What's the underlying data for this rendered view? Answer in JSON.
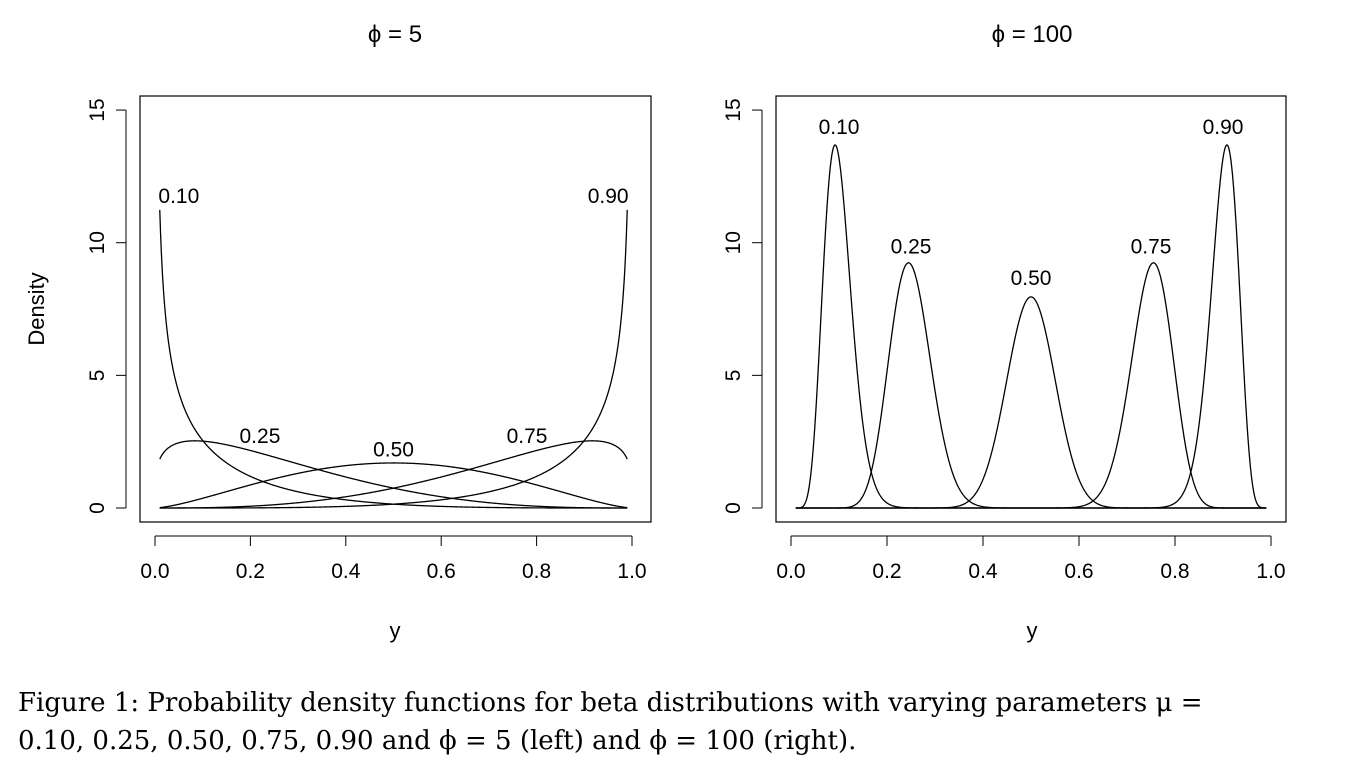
{
  "chart_data": [
    {
      "type": "line",
      "title": "ϕ = 5",
      "phi": 5,
      "xlabel": "y",
      "ylabel": "Density",
      "xlim": [
        0.0,
        1.0
      ],
      "ylim": [
        0,
        15
      ],
      "x_ticks": [
        "0.0",
        "0.2",
        "0.4",
        "0.6",
        "0.8",
        "1.0"
      ],
      "y_ticks": [
        "0",
        "5",
        "10",
        "15"
      ],
      "x_range_plotted": [
        0.01,
        0.99
      ],
      "grid": false,
      "legend": "none",
      "series": [
        {
          "name": "0.10",
          "mu": 0.1,
          "label_at": [
            0.05,
            11.8
          ]
        },
        {
          "name": "0.25",
          "mu": 0.25,
          "label_at": [
            0.22,
            2.75
          ]
        },
        {
          "name": "0.50",
          "mu": 0.5,
          "label_at": [
            0.5,
            2.25
          ]
        },
        {
          "name": "0.75",
          "mu": 0.75,
          "label_at": [
            0.78,
            2.75
          ]
        },
        {
          "name": "0.90",
          "mu": 0.9,
          "label_at": [
            0.95,
            11.8
          ]
        }
      ]
    },
    {
      "type": "line",
      "title": "ϕ = 100",
      "phi": 100,
      "xlabel": "y",
      "ylabel": "",
      "xlim": [
        0.0,
        1.0
      ],
      "ylim": [
        0,
        15
      ],
      "x_ticks": [
        "0.0",
        "0.2",
        "0.4",
        "0.6",
        "0.8",
        "1.0"
      ],
      "y_ticks": [
        "0",
        "5",
        "10",
        "15"
      ],
      "x_range_plotted": [
        0.01,
        0.99
      ],
      "grid": false,
      "legend": "none",
      "series": [
        {
          "name": "0.10",
          "mu": 0.1,
          "label_at": [
            0.1,
            14.4
          ]
        },
        {
          "name": "0.25",
          "mu": 0.25,
          "label_at": [
            0.25,
            9.9
          ]
        },
        {
          "name": "0.50",
          "mu": 0.5,
          "label_at": [
            0.5,
            8.7
          ]
        },
        {
          "name": "0.75",
          "mu": 0.75,
          "label_at": [
            0.75,
            9.9
          ]
        },
        {
          "name": "0.90",
          "mu": 0.9,
          "label_at": [
            0.9,
            14.4
          ]
        }
      ]
    }
  ],
  "caption": {
    "line1": "Figure 1:  Probability density functions for beta distributions with varying parameters μ =",
    "line2": "0.10, 0.25, 0.50, 0.75, 0.90 and ϕ = 5 (left) and ϕ = 100 (right)."
  }
}
